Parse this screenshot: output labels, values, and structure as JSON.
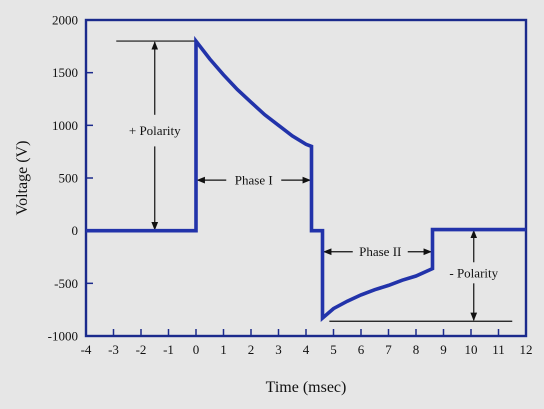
{
  "chart_data": {
    "type": "line",
    "title": "",
    "xlabel": "Time (msec)",
    "ylabel": "Voltage (V)",
    "xlim": [
      -4,
      12
    ],
    "ylim": [
      -1000,
      2000
    ],
    "xticks": [
      -4,
      -3,
      -2,
      -1,
      0,
      1,
      2,
      3,
      4,
      5,
      6,
      7,
      8,
      9,
      10,
      11,
      12
    ],
    "yticks": [
      -1000,
      -500,
      0,
      500,
      1000,
      1500,
      2000
    ],
    "grid": false,
    "legend": "none",
    "series": [
      {
        "x": [
          -4,
          0,
          0,
          0.5,
          1,
          1.5,
          2,
          2.5,
          3,
          3.5,
          4,
          4.2,
          4.2,
          4.6,
          4.6,
          5,
          5.5,
          6,
          6.5,
          7,
          7.5,
          8,
          8.6,
          8.6,
          12
        ],
        "y": [
          0,
          0,
          1800,
          1630,
          1480,
          1340,
          1220,
          1100,
          1000,
          900,
          820,
          800,
          0,
          0,
          -830,
          -740,
          -670,
          -610,
          -560,
          -520,
          -470,
          -430,
          -360,
          10,
          10
        ],
        "color": "#2233aa"
      }
    ],
    "annotations": [
      {
        "label": "+ Polarity",
        "x": -1.5,
        "y": 950
      },
      {
        "label": "Phase I",
        "x": 2.1,
        "y": 480
      },
      {
        "label": "Phase II",
        "x": 6.7,
        "y": -200
      },
      {
        "label": "- Polarity",
        "x": 10.1,
        "y": -400
      }
    ]
  }
}
